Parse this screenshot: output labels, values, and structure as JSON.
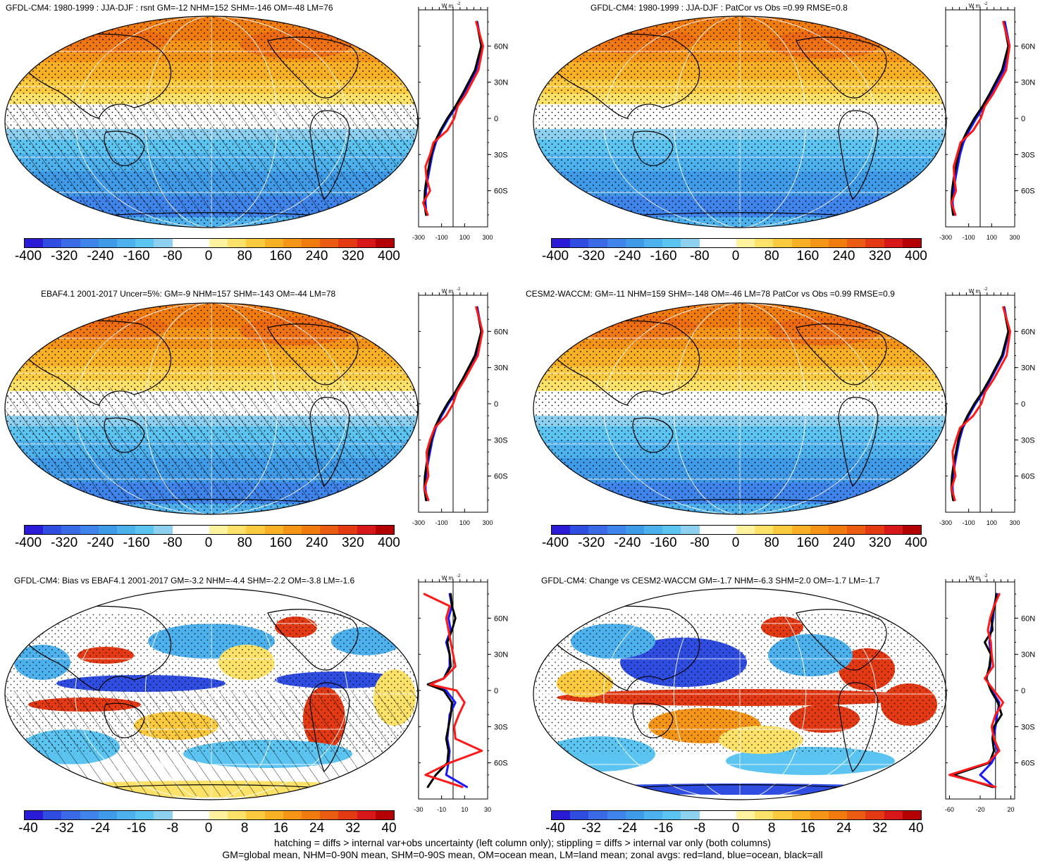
{
  "colorbar_colors": [
    "#2a1bd6",
    "#2f4de0",
    "#3a6ae6",
    "#3f84ea",
    "#3f9ae8",
    "#4cb1ec",
    "#5cc4f0",
    "#8ed0f0",
    "#ffffff",
    "#ffffff",
    "#fff3a0",
    "#fde26a",
    "#fcca3e",
    "#f8b025",
    "#f59518",
    "#f07c10",
    "#ea5c12",
    "#e43a14",
    "#d81818",
    "#b40000"
  ],
  "footer": {
    "line1": "hatching = diffs > internal var+obs uncertainty (left column only); stippling = diffs > internal var only (both columns)",
    "line2": "GM=global mean, NHM=0-90N mean, SHM=0-90S mean, OM=ocean mean, LM=land mean; zonal avgs: red=land, blue=ocean, black=all"
  },
  "chart_data": [
    {
      "type": "heatmap",
      "panel": "top-left",
      "title": "GFDL-CM4: 1980-1999 : JJA-DJF : rsnt GM=-12 NHM=152 SHM=-146 OM=-48 LM=76",
      "colorbar_ticks": [
        "-400",
        "-320",
        "-240",
        "-160",
        "-80",
        "0",
        "80",
        "160",
        "240",
        "320",
        "400"
      ],
      "zonal": {
        "unit": "W m",
        "unit_exp": "-2",
        "xticks": [
          "-300",
          "-100",
          "100",
          "300"
        ],
        "xlim": [
          -300,
          300
        ],
        "yticks": [
          "60N",
          "30N",
          "0",
          "30S",
          "60S"
        ],
        "ylim": [
          -90,
          90
        ],
        "series": [
          {
            "lat": [
              80,
              60,
              40,
              20,
              10,
              0,
              -10,
              -20,
              -30,
              -40,
              -50,
              -60,
              -70,
              -80
            ],
            "values": [
              210,
              250,
              200,
              90,
              30,
              -40,
              -100,
              -150,
              -180,
              -200,
              -220,
              -235,
              -240,
              -230
            ]
          },
          {
            "lat": [
              80,
              60,
              40,
              20,
              10,
              0,
              -10,
              -20,
              -30,
              -40,
              -50,
              -60,
              -70,
              -80
            ],
            "values": [
              205,
              245,
              190,
              80,
              20,
              -50,
              -110,
              -160,
              -190,
              -210,
              -230,
              -245,
              -250,
              -235
            ]
          },
          {
            "lat": [
              80,
              60,
              40,
              20,
              10,
              0,
              -10,
              -20,
              -30,
              -40,
              -50,
              -60,
              -70,
              -80
            ],
            "values": [
              200,
              260,
              220,
              110,
              40,
              10,
              -50,
              -170,
              -200,
              -240,
              -230,
              -200,
              -260,
              -220
            ]
          }
        ]
      }
    },
    {
      "type": "heatmap",
      "panel": "top-right",
      "title": "GFDL-CM4: 1980-1999 : JJA-DJF : PatCor vs Obs =0.99 RMSE=0.8",
      "colorbar_ticks": [
        "-400",
        "-320",
        "-240",
        "-160",
        "-80",
        "0",
        "80",
        "160",
        "240",
        "320",
        "400"
      ],
      "zonal": {
        "unit": "W m",
        "unit_exp": "-2",
        "xticks": [
          "-300",
          "-100",
          "100",
          "300"
        ],
        "xlim": [
          -300,
          300
        ],
        "yticks": [
          "60N",
          "30N",
          "0",
          "30S",
          "60S"
        ],
        "ylim": [
          -90,
          90
        ],
        "series": [
          {
            "lat": [
              80,
              60,
              40,
              20,
              10,
              0,
              -10,
              -20,
              -30,
              -40,
              -50,
              -60,
              -70,
              -80
            ],
            "values": [
              215,
              255,
              205,
              95,
              35,
              -35,
              -95,
              -145,
              -175,
              -195,
              -215,
              -230,
              -240,
              -225
            ]
          },
          {
            "lat": [
              80,
              60,
              40,
              20,
              10,
              0,
              -10,
              -20,
              -30,
              -40,
              -50,
              -60,
              -70,
              -80
            ],
            "values": [
              205,
              245,
              190,
              80,
              20,
              -50,
              -110,
              -160,
              -190,
              -210,
              -230,
              -245,
              -250,
              -235
            ]
          },
          {
            "lat": [
              80,
              60,
              40,
              20,
              10,
              0,
              -10,
              -20,
              -30,
              -40,
              -50,
              -60,
              -70,
              -80
            ],
            "values": [
              200,
              255,
              225,
              110,
              40,
              5,
              -60,
              -170,
              -200,
              -230,
              -225,
              -210,
              -250,
              -215
            ]
          }
        ]
      }
    },
    {
      "type": "heatmap",
      "panel": "middle-left",
      "title": "EBAF4.1 2001-2017 Uncer=5%: GM=-9 NHM=157 SHM=-143 OM=-44 LM=78",
      "colorbar_ticks": [
        "-400",
        "-320",
        "-240",
        "-160",
        "-80",
        "0",
        "80",
        "160",
        "240",
        "320",
        "400"
      ],
      "zonal": {
        "unit": "W m",
        "unit_exp": "-2",
        "xticks": [
          "-300",
          "-100",
          "100",
          "300"
        ],
        "xlim": [
          -300,
          300
        ],
        "yticks": [
          "60N",
          "30N",
          "0",
          "30S",
          "60S"
        ],
        "ylim": [
          -90,
          90
        ],
        "series": [
          {
            "lat": [
              80,
              60,
              40,
              20,
              10,
              0,
              -10,
              -20,
              -30,
              -40,
              -50,
              -60,
              -70,
              -80
            ],
            "values": [
              210,
              250,
              200,
              90,
              30,
              -40,
              -100,
              -150,
              -180,
              -200,
              -220,
              -235,
              -240,
              -230
            ]
          },
          {
            "lat": [
              80,
              60,
              40,
              20,
              10,
              0,
              -10,
              -20,
              -30,
              -40,
              -50,
              -60,
              -70,
              -80
            ],
            "values": [
              205,
              245,
              190,
              80,
              20,
              -50,
              -110,
              -160,
              -190,
              -210,
              -230,
              -245,
              -250,
              -235
            ]
          },
          {
            "lat": [
              80,
              60,
              40,
              20,
              10,
              0,
              -10,
              -20,
              -30,
              -40,
              -50,
              -60,
              -70,
              -80
            ],
            "values": [
              200,
              255,
              215,
              100,
              35,
              0,
              -60,
              -160,
              -200,
              -230,
              -225,
              -215,
              -250,
              -215
            ]
          }
        ]
      }
    },
    {
      "type": "heatmap",
      "panel": "middle-right",
      "title": "CESM2-WACCM: GM=-11 NHM=159 SHM=-148 OM=-46 LM=78 PatCor vs Obs =0.99 RMSE=0.9",
      "colorbar_ticks": [
        "-400",
        "-320",
        "-240",
        "-160",
        "-80",
        "0",
        "80",
        "160",
        "240",
        "320",
        "400"
      ],
      "zonal": {
        "unit": "W m",
        "unit_exp": "-2",
        "xticks": [
          "-300",
          "-100",
          "100",
          "300"
        ],
        "xlim": [
          -300,
          300
        ],
        "yticks": [
          "60N",
          "30N",
          "0",
          "30S",
          "60S"
        ],
        "ylim": [
          -90,
          90
        ],
        "series": [
          {
            "lat": [
              80,
              60,
              40,
              20,
              10,
              0,
              -10,
              -20,
              -30,
              -40,
              -50,
              -60,
              -70,
              -80
            ],
            "values": [
              210,
              250,
              200,
              90,
              30,
              -40,
              -100,
              -150,
              -180,
              -200,
              -220,
              -235,
              -240,
              -230
            ]
          },
          {
            "lat": [
              80,
              60,
              40,
              20,
              10,
              0,
              -10,
              -20,
              -30,
              -40,
              -50,
              -60,
              -70,
              -80
            ],
            "values": [
              205,
              245,
              190,
              80,
              20,
              -50,
              -110,
              -160,
              -190,
              -210,
              -230,
              -245,
              -250,
              -235
            ]
          },
          {
            "lat": [
              80,
              60,
              40,
              20,
              10,
              0,
              -10,
              -20,
              -30,
              -40,
              -50,
              -60,
              -70,
              -80
            ],
            "values": [
              200,
              260,
              230,
              115,
              45,
              10,
              -60,
              -175,
              -210,
              -240,
              -230,
              -215,
              -250,
              -220
            ]
          }
        ]
      }
    },
    {
      "type": "heatmap",
      "panel": "bottom-left",
      "title": "GFDL-CM4: Bias vs EBAF4.1 2001-2017 GM=-3.2 NHM=-4.4 SHM=-2.2 OM=-3.8 LM=-1.6",
      "colorbar_ticks": [
        "-40",
        "-32",
        "-24",
        "-16",
        "-8",
        "0",
        "8",
        "16",
        "24",
        "32",
        "40"
      ],
      "zonal": {
        "unit": "W m",
        "unit_exp": "-2",
        "xticks": [
          "-30",
          "-10",
          "10",
          "30"
        ],
        "xlim": [
          -30,
          30
        ],
        "yticks": [
          "60N",
          "30N",
          "0",
          "30S",
          "60S"
        ],
        "ylim": [
          -90,
          90
        ],
        "series": [
          {
            "lat": [
              80,
              70,
              60,
              50,
              40,
              30,
              20,
              10,
              5,
              0,
              -10,
              -20,
              -30,
              -40,
              -50,
              -60,
              -70,
              -80
            ],
            "values": [
              -3,
              -1,
              -4,
              -2,
              -6,
              -3,
              -3,
              -8,
              -20,
              -6,
              2,
              -3,
              -4,
              -5,
              -3,
              -4,
              -6,
              12
            ]
          },
          {
            "lat": [
              80,
              70,
              60,
              50,
              40,
              30,
              20,
              10,
              5,
              0,
              -10,
              -20,
              -30,
              -40,
              -50,
              -60,
              -70,
              -80
            ],
            "values": [
              -2,
              -1,
              2,
              -1,
              -5,
              -3,
              -2,
              -8,
              -22,
              -8,
              -1,
              -2,
              -4,
              -6,
              -4,
              -5,
              -15,
              -22
            ]
          },
          {
            "lat": [
              80,
              70,
              60,
              50,
              40,
              30,
              20,
              10,
              5,
              0,
              -10,
              -20,
              -30,
              -40,
              -50,
              -60,
              -70,
              -80
            ],
            "values": [
              -25,
              -3,
              -6,
              -4,
              -2,
              0,
              2,
              -8,
              -20,
              3,
              10,
              5,
              1,
              2,
              25,
              -3,
              -24,
              8
            ]
          }
        ]
      }
    },
    {
      "type": "heatmap",
      "panel": "bottom-right",
      "title": "GFDL-CM4: Change vs CESM2-WACCM GM=-1.7 NHM=-6.3 SHM=2.0 OM=-1.7 LM=-1.7",
      "colorbar_ticks": [
        "-40",
        "-32",
        "-24",
        "-16",
        "-8",
        "0",
        "8",
        "16",
        "24",
        "32",
        "40"
      ],
      "zonal": {
        "unit": "W m",
        "unit_exp": "-2",
        "xticks": [
          "-60",
          "-20",
          "20"
        ],
        "xlim": [
          -65,
          25
        ],
        "yticks": [
          "60N",
          "30N",
          "0",
          "30S",
          "60S"
        ],
        "ylim": [
          -90,
          90
        ],
        "series": [
          {
            "lat": [
              80,
              70,
              60,
              50,
              40,
              30,
              20,
              10,
              0,
              -10,
              -20,
              -30,
              -40,
              -50,
              -60,
              -70,
              -80
            ],
            "values": [
              2,
              -2,
              -3,
              -6,
              -8,
              -6,
              -7,
              -12,
              -5,
              5,
              2,
              0,
              -3,
              3,
              -5,
              -20,
              -2
            ]
          },
          {
            "lat": [
              80,
              70,
              60,
              50,
              40,
              30,
              20,
              10,
              0,
              -10,
              -20,
              -30,
              -40,
              -50,
              -60,
              -70,
              -80
            ],
            "values": [
              1,
              -1,
              -5,
              -4,
              -14,
              -6,
              -8,
              -12,
              -6,
              3,
              8,
              -2,
              -4,
              -2,
              -8,
              -55,
              -4
            ]
          },
          {
            "lat": [
              80,
              70,
              60,
              50,
              40,
              30,
              20,
              10,
              0,
              -10,
              -20,
              -30,
              -40,
              -50,
              -60,
              -70,
              -80
            ],
            "values": [
              5,
              -2,
              -7,
              -10,
              -6,
              -5,
              -3,
              -14,
              -2,
              10,
              0,
              -5,
              -2,
              5,
              -10,
              -60,
              0
            ]
          }
        ]
      }
    }
  ]
}
